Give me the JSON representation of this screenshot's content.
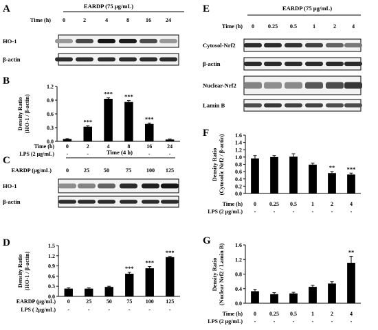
{
  "panels": {
    "A": {
      "label": "A",
      "header": "EARDP (75 μg/mL)",
      "row_label": "Time (h)",
      "lanes": [
        "0",
        "2",
        "4",
        "8",
        "16",
        "24"
      ],
      "blots": [
        {
          "name": "HO-1",
          "intensity": [
            0.35,
            0.72,
            0.95,
            0.92,
            0.7,
            0.35
          ]
        },
        {
          "name": "β-actin",
          "intensity": [
            0.85,
            0.85,
            0.85,
            0.85,
            0.85,
            0.85
          ]
        }
      ]
    },
    "E": {
      "label": "E",
      "header": "EARDP (75 μg/mL)",
      "row_label": "Time (h)",
      "lanes": [
        "0",
        "0.25",
        "0.5",
        "1",
        "2",
        "4"
      ],
      "blots": [
        {
          "name": "Cytosol-Nrf2",
          "intensity": [
            0.85,
            0.85,
            0.82,
            0.75,
            0.6,
            0.5
          ]
        },
        {
          "name": "β-actin",
          "intensity": [
            0.85,
            0.85,
            0.85,
            0.85,
            0.85,
            0.85
          ]
        },
        {
          "name": "Nuclear-Nrf2",
          "intensity": [
            0.45,
            0.4,
            0.42,
            0.65,
            0.7,
            0.8
          ]
        },
        {
          "name": "Lamin B",
          "intensity": [
            0.7,
            0.8,
            0.75,
            0.75,
            0.7,
            0.7
          ]
        }
      ]
    },
    "C": {
      "label": "C",
      "header": "Time (4 h)",
      "row_label": "EARDP (μg/mL)",
      "lanes": [
        "0",
        "25",
        "50",
        "75",
        "100",
        "125"
      ],
      "blots": [
        {
          "name": "HO-1",
          "intensity": [
            0.4,
            0.45,
            0.6,
            0.85,
            0.9,
            0.95
          ]
        },
        {
          "name": "β-actin",
          "intensity": [
            0.85,
            0.85,
            0.85,
            0.85,
            0.85,
            0.85
          ]
        }
      ]
    }
  },
  "chart_data": [
    {
      "panel": "B",
      "type": "bar",
      "ylabel_lines": [
        "Density Ratio",
        "(HO-1 / β-actin)"
      ],
      "ylim": [
        0,
        1.2
      ],
      "yticks": [
        "0.0",
        "0.3",
        "0.6",
        "0.9",
        "1.2"
      ],
      "categories": [
        "0",
        "2",
        "4",
        "8",
        "16",
        "24"
      ],
      "values": [
        0.05,
        0.32,
        0.93,
        0.86,
        0.38,
        0.04
      ],
      "errors": [
        0.01,
        0.02,
        0.02,
        0.03,
        0.02,
        0.01
      ],
      "significance": [
        "",
        "***",
        "***",
        "***",
        "***",
        ""
      ],
      "row_labels": [
        "Time (h)",
        "LPS (2 μg/mL)"
      ],
      "lps_row": [
        "-",
        "-",
        "-",
        "-",
        "-",
        "-"
      ]
    },
    {
      "panel": "D",
      "type": "bar",
      "ylabel_lines": [
        "Density Ratio",
        "(HO-1 / β-actin)"
      ],
      "ylim": [
        0,
        1.5
      ],
      "yticks": [
        "0.0",
        "0.3",
        "0.6",
        "0.9",
        "1.2",
        "1.5"
      ],
      "categories": [
        "0",
        "25",
        "50",
        "75",
        "100",
        "125"
      ],
      "values": [
        0.23,
        0.23,
        0.28,
        0.67,
        0.83,
        1.16
      ],
      "errors": [
        0.02,
        0.02,
        0.02,
        0.04,
        0.05,
        0.02
      ],
      "significance": [
        "",
        "",
        "",
        "***",
        "***",
        "***"
      ],
      "row_labels": [
        "EARDP (μg/mL)",
        "LPS ( 2μg/mL)"
      ],
      "lps_row": [
        "-",
        "-",
        "-",
        "-",
        "-",
        "-"
      ]
    },
    {
      "panel": "F",
      "type": "bar",
      "ylabel_lines": [
        "Density Ratio",
        "(Cytosolic Nrf2 / β-actin)"
      ],
      "ylim": [
        0,
        1.6
      ],
      "yticks": [
        "0.0",
        "0.2",
        "0.4",
        "0.6",
        "0.8",
        "1.0",
        "1.2",
        "1.4",
        "1.6"
      ],
      "categories": [
        "0",
        "0.25",
        "0.5",
        "1",
        "2",
        "4"
      ],
      "values": [
        0.96,
        1.0,
        1.01,
        0.79,
        0.56,
        0.52
      ],
      "errors": [
        0.08,
        0.04,
        0.08,
        0.04,
        0.04,
        0.04
      ],
      "significance": [
        "",
        "",
        "",
        "",
        "**",
        "***"
      ],
      "row_labels": [
        "Time (h)",
        "LPS (2 μg/mL)"
      ],
      "lps_row": [
        "-",
        "-",
        "-",
        "-",
        "-",
        "-"
      ]
    },
    {
      "panel": "G",
      "type": "bar",
      "ylabel_lines": [
        "Density Ratio",
        "(Nuclear Nrf2 / Lamin B)"
      ],
      "ylim": [
        0,
        1.6
      ],
      "yticks": [
        "0.0",
        "0.4",
        "0.8",
        "1.2",
        "1.6"
      ],
      "categories": [
        "0",
        "0.25",
        "0.5",
        "1",
        "2",
        "4"
      ],
      "values": [
        0.33,
        0.25,
        0.27,
        0.45,
        0.54,
        1.11
      ],
      "errors": [
        0.05,
        0.04,
        0.03,
        0.04,
        0.05,
        0.18
      ],
      "significance": [
        "",
        "",
        "",
        "",
        "",
        "**"
      ],
      "row_labels": [
        "Time (h)",
        "LPS (2 μg/mL)"
      ],
      "lps_row": [
        "-",
        "-",
        "-",
        "-",
        "-",
        "-"
      ]
    }
  ]
}
